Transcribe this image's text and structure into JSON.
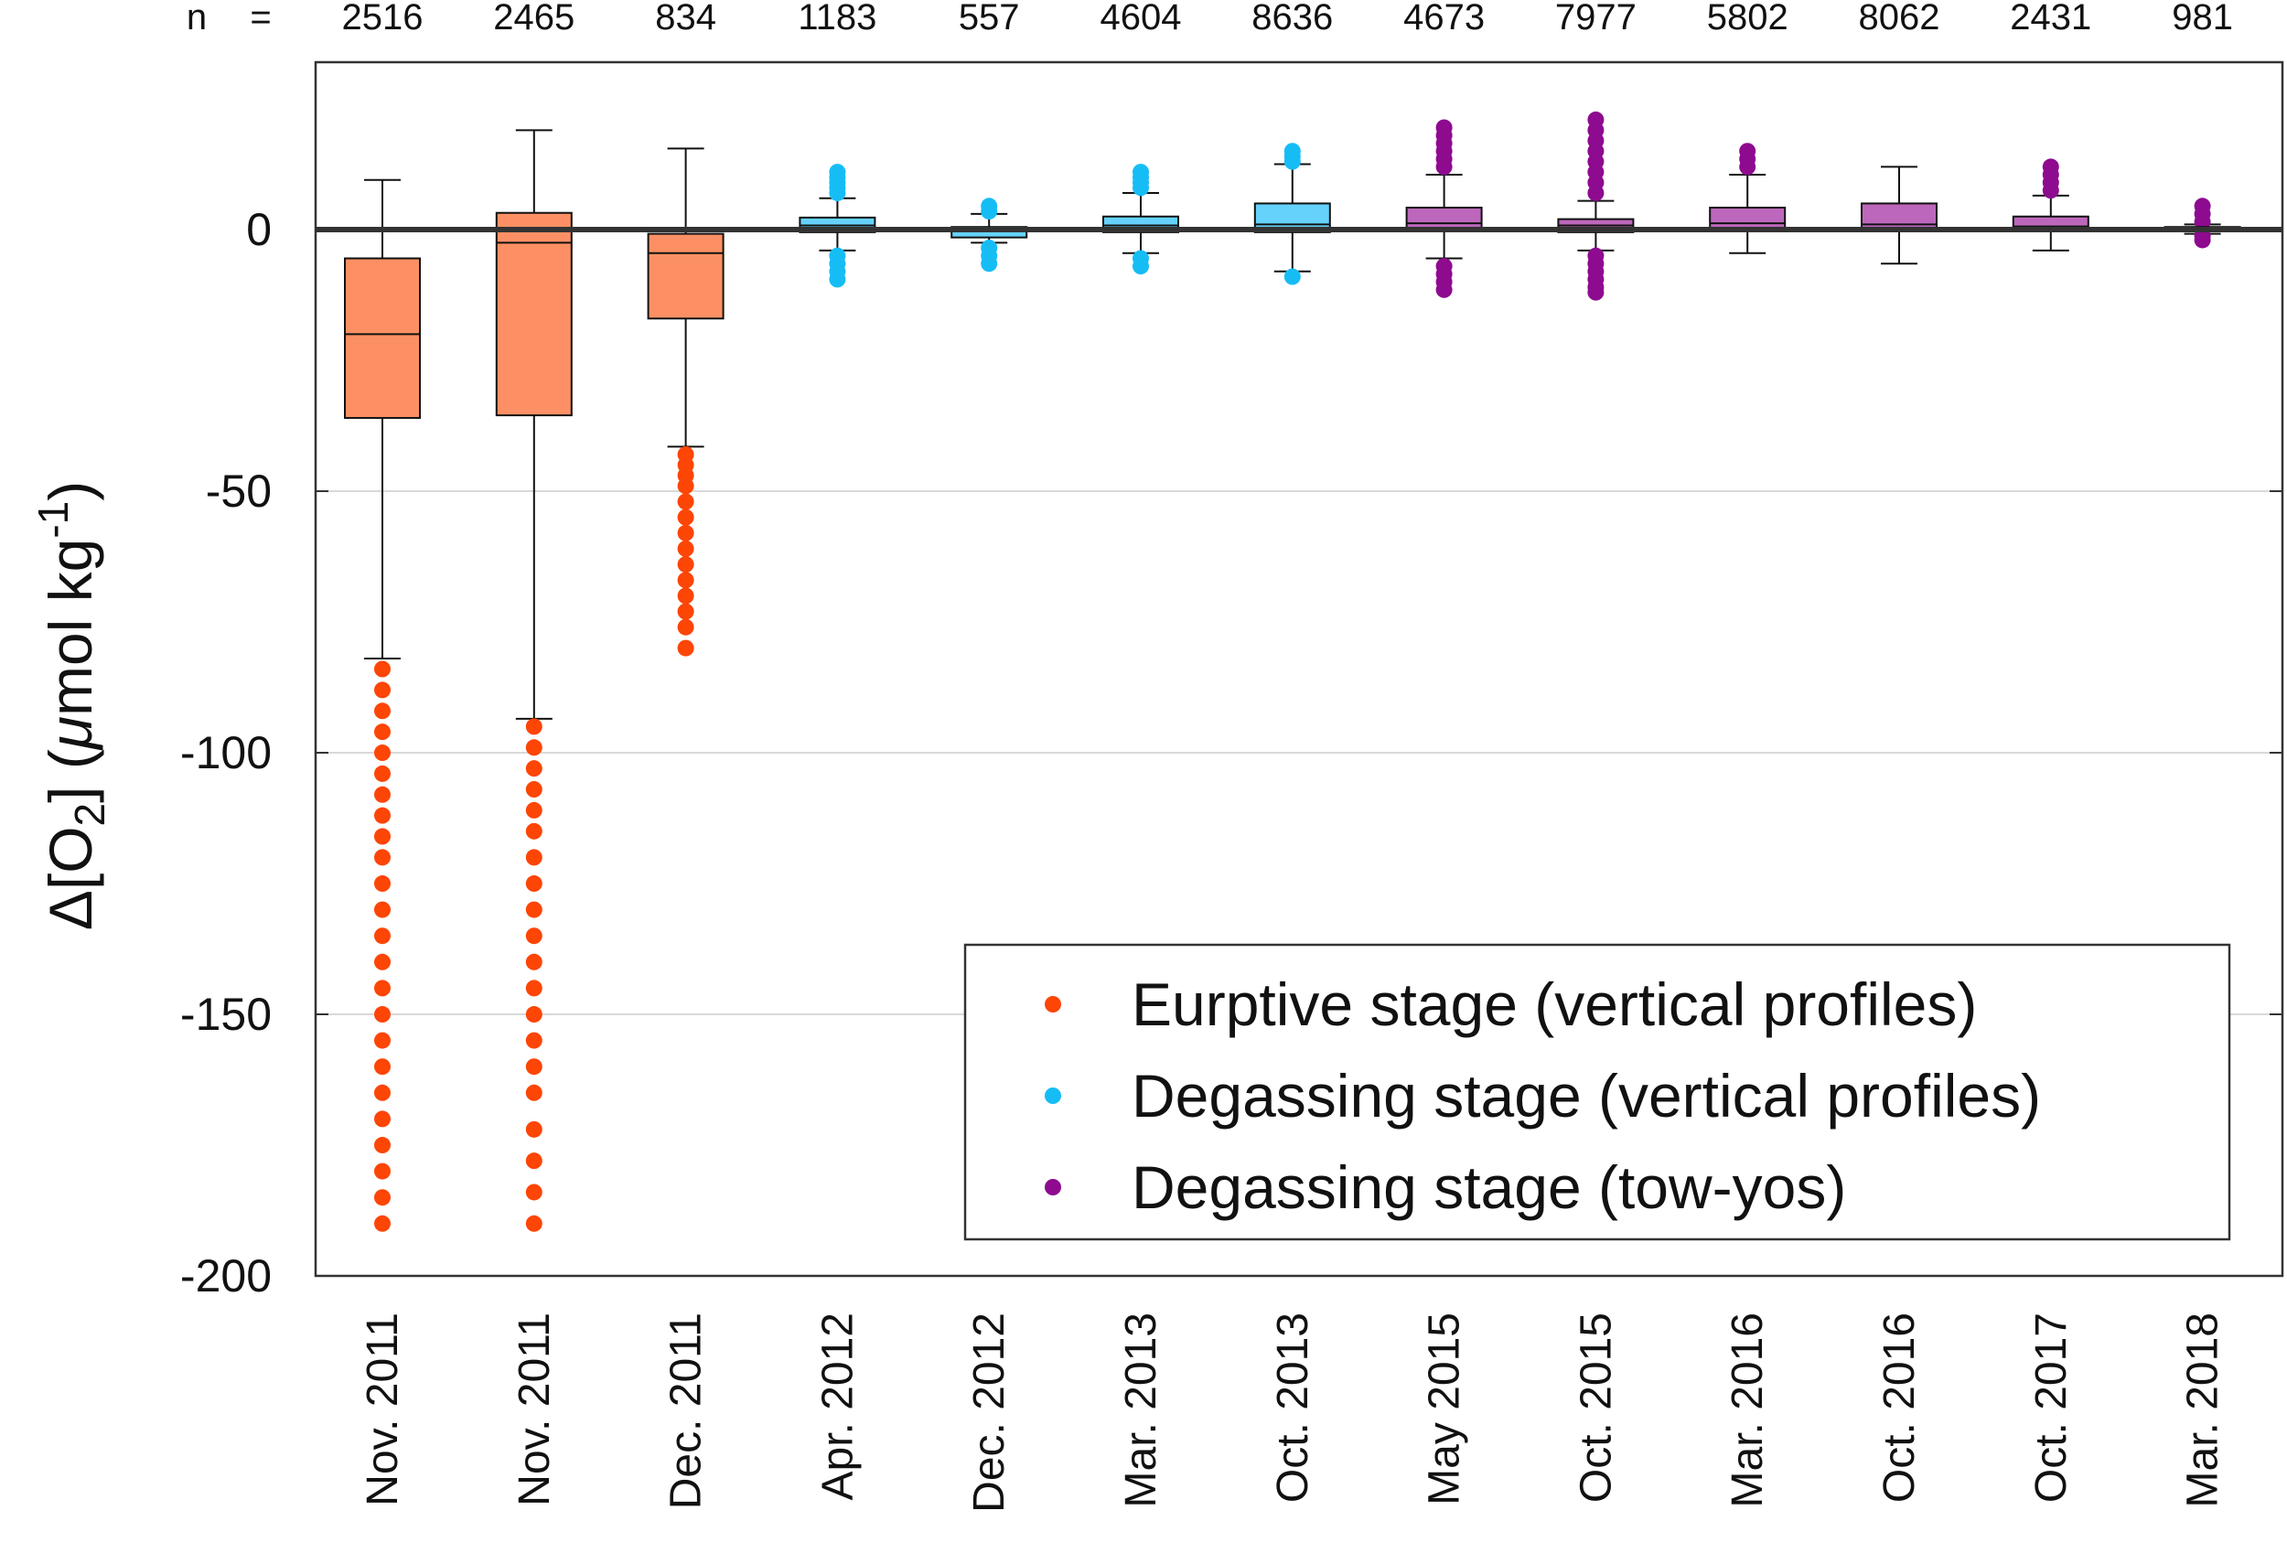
{
  "chart_data": {
    "type": "box",
    "title": "",
    "xlabel": "",
    "ylabel": {
      "delta": "Δ",
      "bracket_open": "[O",
      "subscript": "2",
      "bracket_close": "] (",
      "mu": "μ",
      "unit": "mol kg",
      "superscript": "-1",
      "close": ")"
    },
    "ylim": [
      -200,
      32
    ],
    "yticks": [
      0,
      -50,
      -100,
      -150,
      -200
    ],
    "ytick_labels": [
      "0",
      "-50",
      "-100",
      "-150",
      "-200"
    ],
    "grid": true,
    "n_prefix": "n",
    "n_equals": "=",
    "categories": [
      "Nov. 2011",
      "Nov. 2011",
      "Dec. 2011",
      "Apr. 2012",
      "Dec. 2012",
      "Mar. 2013",
      "Oct. 2013",
      "May 2015",
      "Oct. 2015",
      "Mar. 2016",
      "Oct. 2016",
      "Oct. 2017",
      "Mar. 2018"
    ],
    "n": [
      "2516",
      "2465",
      "834",
      "1183",
      "557",
      "4604",
      "8636",
      "4673",
      "7977",
      "5802",
      "8062",
      "2431",
      "981"
    ],
    "stages": [
      "eruptive",
      "eruptive",
      "eruptive",
      "degassing_vp",
      "degassing_vp",
      "degassing_vp",
      "degassing_vp",
      "tow_yos",
      "tow_yos",
      "tow_yos",
      "tow_yos",
      "tow_yos",
      "tow_yos"
    ],
    "boxes": [
      {
        "whisker_low": -82,
        "q1": -36,
        "median": -20,
        "q3": -5.5,
        "whisker_high": 9.5,
        "outliers_low": [
          -84,
          -88,
          -92,
          -96,
          -100,
          -104,
          -108,
          -112,
          -116,
          -120,
          -125,
          -130,
          -135,
          -140,
          -145,
          -150,
          -155,
          -160,
          -165,
          -170,
          -175,
          -180,
          -185,
          -190
        ],
        "outliers_high": []
      },
      {
        "whisker_low": -93.5,
        "q1": -35.5,
        "median": -2.5,
        "q3": 3.2,
        "whisker_high": 19,
        "outliers_low": [
          -95,
          -99,
          -103,
          -107,
          -111,
          -115,
          -120,
          -125,
          -130,
          -135,
          -140,
          -145,
          -150,
          -155,
          -160,
          -165,
          -172,
          -178,
          -184,
          -190
        ],
        "outliers_high": []
      },
      {
        "whisker_low": -41.5,
        "q1": -17,
        "median": -4.5,
        "q3": -0.8,
        "whisker_high": 15.5,
        "outliers_low": [
          -43,
          -45,
          -47,
          -49,
          -52,
          -55,
          -58,
          -61,
          -64,
          -67,
          -70,
          -73,
          -76,
          -80
        ],
        "outliers_high": []
      },
      {
        "whisker_low": -4,
        "q1": -0.5,
        "median": 0.8,
        "q3": 2.3,
        "whisker_high": 6,
        "outliers_low": [
          -5,
          -6.5,
          -8,
          -9.5
        ],
        "outliers_high": [
          7,
          8,
          9,
          10,
          11
        ]
      },
      {
        "whisker_low": -2.5,
        "q1": -1.5,
        "median": -0.3,
        "q3": 0.5,
        "whisker_high": 3,
        "outliers_low": [
          -3.5,
          -5,
          -6.5
        ],
        "outliers_high": [
          3.5,
          4.5
        ]
      },
      {
        "whisker_low": -4.5,
        "q1": -0.5,
        "median": 0.8,
        "q3": 2.5,
        "whisker_high": 7,
        "outliers_low": [
          -5.5,
          -7
        ],
        "outliers_high": [
          8,
          9,
          10,
          11
        ]
      },
      {
        "whisker_low": -8,
        "q1": -0.5,
        "median": 1,
        "q3": 5,
        "whisker_high": 12.5,
        "outliers_low": [
          -9
        ],
        "outliers_high": [
          13,
          14,
          15
        ]
      },
      {
        "whisker_low": -5.5,
        "q1": -0.2,
        "median": 1.2,
        "q3": 4.2,
        "whisker_high": 10.5,
        "outliers_low": [
          -7,
          -8.5,
          -10,
          -11.5
        ],
        "outliers_high": [
          12,
          13.5,
          15,
          16.5,
          18,
          19.5
        ]
      },
      {
        "whisker_low": -4,
        "q1": -0.5,
        "median": 0.8,
        "q3": 2,
        "whisker_high": 5.5,
        "outliers_low": [
          -5,
          -6.5,
          -8,
          -9.5,
          -11,
          -12
        ],
        "outliers_high": [
          7,
          9,
          11,
          13,
          15,
          17,
          19,
          21
        ]
      },
      {
        "whisker_low": -4.5,
        "q1": -0.3,
        "median": 1.2,
        "q3": 4.2,
        "whisker_high": 10.5,
        "outliers_low": [],
        "outliers_high": [
          12,
          13.5,
          15
        ]
      },
      {
        "whisker_low": -6.5,
        "q1": -0.2,
        "median": 1,
        "q3": 5,
        "whisker_high": 12,
        "outliers_low": [],
        "outliers_high": []
      },
      {
        "whisker_low": -4,
        "q1": -0.2,
        "median": 0.6,
        "q3": 2.5,
        "whisker_high": 6.5,
        "outliers_low": [],
        "outliers_high": [
          7.5,
          9,
          10.5,
          12
        ]
      },
      {
        "whisker_low": -0.8,
        "q1": -0.2,
        "median": 0.1,
        "q3": 0.5,
        "whisker_high": 1,
        "outliers_low": [
          -1.2,
          -2
        ],
        "outliers_high": [
          1.5,
          3,
          4.5
        ]
      }
    ],
    "legend": {
      "position": "bottom-right",
      "entries": [
        {
          "key": "eruptive",
          "label": "Eurptive stage (vertical profiles)"
        },
        {
          "key": "degassing_vp",
          "label": "Degassing stage (vertical profiles)"
        },
        {
          "key": "tow_yos",
          "label": "Degassing stage (tow-yos)"
        }
      ]
    },
    "colors": {
      "eruptive": {
        "box": "#fc9064",
        "point": "#fd4506"
      },
      "degassing_vp": {
        "box": "#65d2fb",
        "point": "#16bdf5"
      },
      "tow_yos": {
        "box": "#bd67bc",
        "point": "#8e0a8f"
      }
    }
  }
}
